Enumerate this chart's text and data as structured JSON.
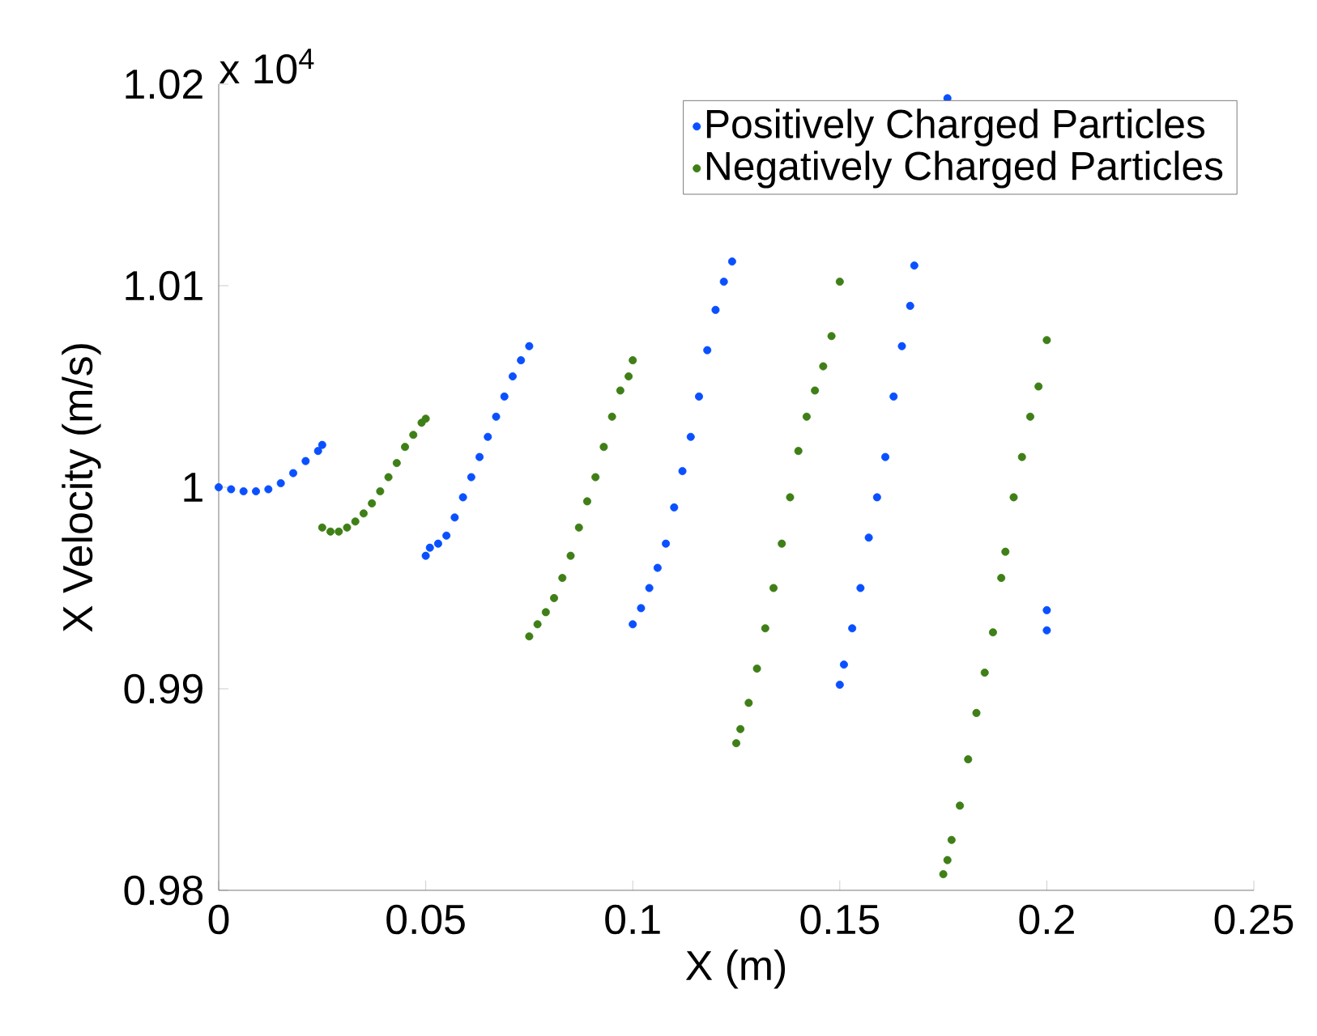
{
  "chart_data": {
    "type": "scatter",
    "xlabel": "X (m)",
    "ylabel": "X Velocity (m/s)",
    "annotations": [
      "x 10$^{4}$"
    ],
    "xlim": [
      0,
      0.25
    ],
    "xticks": [
      0,
      0.05,
      0.1,
      0.15,
      0.2,
      0.25
    ],
    "ylim": [
      0.98,
      1.02
    ],
    "yticks": [
      0.98,
      0.99,
      1,
      1.01,
      1.02
    ],
    "legend": "top right",
    "marker": "circle",
    "series": [
      {
        "name": "Positively Charged Particles",
        "color": "#0a50ff",
        "x": [
          0,
          0.003,
          0.006,
          0.009,
          0.012,
          0.015,
          0.018,
          0.021,
          0.024,
          0.025,
          0.05,
          0.051,
          0.053,
          0.055,
          0.057,
          0.059,
          0.061,
          0.063,
          0.065,
          0.067,
          0.069,
          0.071,
          0.073,
          0.075,
          0.1,
          0.102,
          0.104,
          0.106,
          0.108,
          0.11,
          0.112,
          0.114,
          0.116,
          0.118,
          0.12,
          0.122,
          0.124,
          0.15,
          0.151,
          0.153,
          0.155,
          0.157,
          0.159,
          0.161,
          0.163,
          0.165,
          0.167,
          0.168,
          0.176,
          0.2,
          0.2
        ],
        "values": [
          1.0,
          0.9999,
          0.9998,
          0.9998,
          0.9999,
          1.0002,
          1.0007,
          1.0013,
          1.0018,
          1.0021,
          0.9966,
          0.997,
          0.9972,
          0.9976,
          0.9985,
          0.9995,
          1.0005,
          1.0015,
          1.0025,
          1.0035,
          1.0045,
          1.0055,
          1.0063,
          1.007,
          0.9932,
          0.994,
          0.995,
          0.996,
          0.9972,
          0.999,
          1.0008,
          1.0025,
          1.0045,
          1.0068,
          1.0088,
          1.0102,
          1.0112,
          0.9902,
          0.9912,
          0.993,
          0.995,
          0.9975,
          0.9995,
          1.0015,
          1.0045,
          1.007,
          1.009,
          1.011,
          1.0193,
          0.9939,
          0.9929
        ]
      },
      {
        "name": "Negatively Charged Particles",
        "color": "#3f7f17",
        "x": [
          0.025,
          0.027,
          0.029,
          0.031,
          0.033,
          0.035,
          0.037,
          0.039,
          0.041,
          0.043,
          0.045,
          0.047,
          0.049,
          0.05,
          0.075,
          0.077,
          0.079,
          0.081,
          0.083,
          0.085,
          0.087,
          0.089,
          0.091,
          0.093,
          0.095,
          0.097,
          0.099,
          0.1,
          0.125,
          0.126,
          0.128,
          0.13,
          0.132,
          0.134,
          0.136,
          0.138,
          0.14,
          0.142,
          0.144,
          0.146,
          0.148,
          0.15,
          0.175,
          0.176,
          0.177,
          0.179,
          0.181,
          0.183,
          0.185,
          0.187,
          0.189,
          0.19,
          0.192,
          0.194,
          0.196,
          0.198,
          0.2
        ],
        "values": [
          0.998,
          0.9978,
          0.9978,
          0.998,
          0.9983,
          0.9987,
          0.9992,
          0.9998,
          1.0005,
          1.0012,
          1.002,
          1.0026,
          1.0032,
          1.0034,
          0.9926,
          0.9932,
          0.9938,
          0.9945,
          0.9955,
          0.9966,
          0.998,
          0.9993,
          1.0005,
          1.002,
          1.0035,
          1.0048,
          1.0055,
          1.0063,
          0.9873,
          0.988,
          0.9893,
          0.991,
          0.993,
          0.995,
          0.9972,
          0.9995,
          1.0018,
          1.0035,
          1.0048,
          1.006,
          1.0075,
          1.0102,
          0.9808,
          0.9815,
          0.9825,
          0.9842,
          0.9865,
          0.9888,
          0.9908,
          0.9928,
          0.9955,
          0.9968,
          0.9995,
          1.0015,
          1.0035,
          1.005,
          1.0073
        ]
      }
    ]
  }
}
